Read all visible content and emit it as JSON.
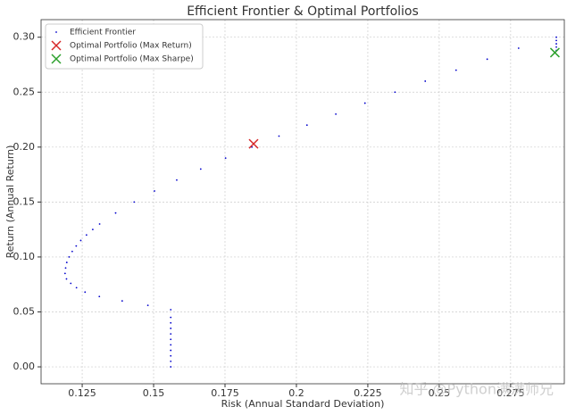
{
  "chart_data": {
    "type": "scatter",
    "title": "Efficient Frontier & Optimal Portfolios",
    "xlabel": "Risk (Annual Standard Deviation)",
    "ylabel": "Return (Annual Return)",
    "xlim": [
      0.1106,
      0.2938
    ],
    "ylim": [
      -0.0154,
      0.316
    ],
    "xticks": [
      0.125,
      0.15,
      0.175,
      0.2,
      0.225,
      0.25,
      0.275
    ],
    "yticks": [
      {
        "value": 0,
        "label": "0.00"
      },
      0.05,
      {
        "value": 0.1,
        "label": "0.10"
      },
      0.15,
      {
        "value": 0.2,
        "label": "0.20"
      },
      0.25,
      {
        "value": 0.3,
        "label": "0.30"
      }
    ],
    "grid": true,
    "legend": "upper left",
    "watermark": "知乎 @Python满满师兄",
    "series": [
      {
        "name": "Efficient Frontier",
        "color": "#0000cc",
        "marker": "dot",
        "x": [
          0.156,
          0.156,
          0.156,
          0.156,
          0.156,
          0.156,
          0.156,
          0.156,
          0.156,
          0.156,
          0.156,
          0.148,
          0.139,
          0.131,
          0.126,
          0.123,
          0.121,
          0.1195,
          0.119,
          0.1192,
          0.1196,
          0.1204,
          0.1215,
          0.1229,
          0.1245,
          0.1265,
          0.1287,
          0.1311,
          0.1367,
          0.1432,
          0.1503,
          0.1581,
          0.1665,
          0.1752,
          0.1844,
          0.1939,
          0.2037,
          0.2138,
          0.224,
          0.2345,
          0.2451,
          0.2559,
          0.2668,
          0.2778,
          0.291,
          0.291,
          0.291,
          0.291,
          0.291
        ],
        "y": [
          0,
          0.005,
          0.01,
          0.015,
          0.02,
          0.025,
          0.03,
          0.035,
          0.04,
          0.045,
          0.052,
          0.056,
          0.06,
          0.064,
          0.068,
          0.072,
          0.076,
          0.08,
          0.085,
          0.09,
          0.095,
          0.1,
          0.105,
          0.11,
          0.115,
          0.12,
          0.125,
          0.13,
          0.14,
          0.15,
          0.16,
          0.17,
          0.18,
          0.19,
          0.2,
          0.21,
          0.22,
          0.23,
          0.24,
          0.25,
          0.26,
          0.27,
          0.28,
          0.29,
          0.288,
          0.291,
          0.294,
          0.297,
          0.3
        ]
      },
      {
        "name": "Optimal Portfolio (Max Return)",
        "color": "#d62728",
        "marker": "x",
        "x": [
          0.185
        ],
        "y": [
          0.203
        ]
      },
      {
        "name": "Optimal Portfolio (Max Sharpe)",
        "color": "#2ca02c",
        "marker": "x",
        "x": [
          0.2905
        ],
        "y": [
          0.286
        ]
      }
    ]
  }
}
